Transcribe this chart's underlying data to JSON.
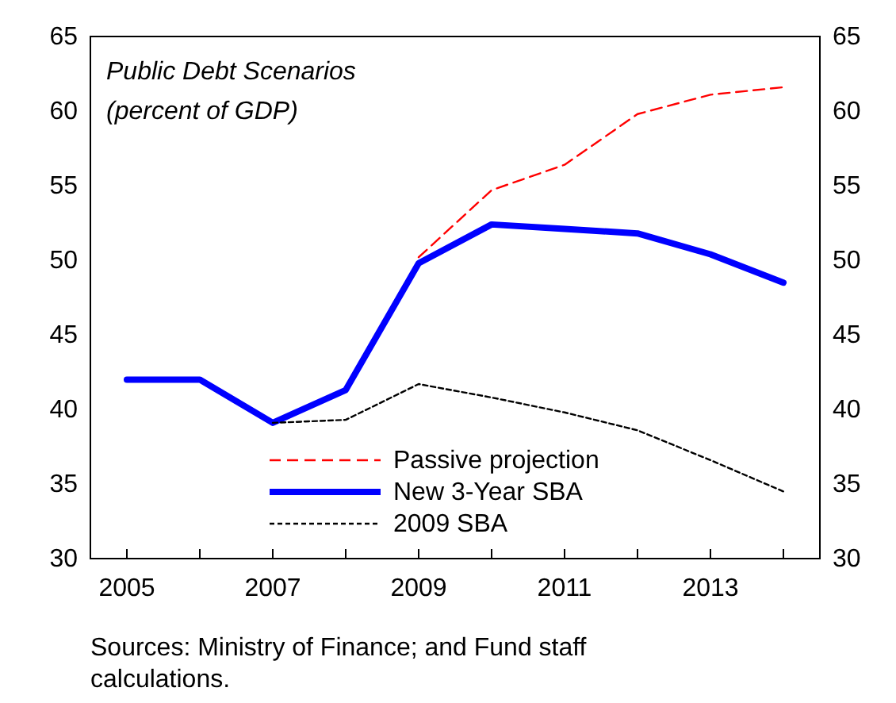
{
  "chart_data": {
    "type": "line",
    "title": "Public Debt Scenarios",
    "subtitle": "(percent of GDP)",
    "x": [
      2005,
      2006,
      2007,
      2008,
      2009,
      2010,
      2011,
      2012,
      2013,
      2014
    ],
    "series": [
      {
        "name": "Passive projection",
        "color": "#ff0000",
        "line_style": "dashed",
        "values": [
          null,
          null,
          null,
          null,
          50.2,
          54.7,
          56.4,
          59.8,
          61.1,
          61.6
        ]
      },
      {
        "name": "New 3-Year SBA",
        "color": "#0000ff",
        "line_style": "solid",
        "values": [
          42,
          42,
          39.1,
          41.3,
          49.8,
          52.4,
          52.1,
          51.8,
          50.4,
          48.5
        ]
      },
      {
        "name": "2009 SBA",
        "color": "#000000",
        "line_style": "dotted",
        "values": [
          null,
          null,
          39.1,
          39.3,
          41.7,
          40.8,
          39.8,
          38.6,
          36.6,
          34.5
        ]
      }
    ],
    "xlim": [
      2004.5,
      2014.5
    ],
    "xticks": [
      2005,
      {
        "value": 2006,
        "label": null
      },
      2007,
      {
        "value": 2008,
        "label": null
      },
      2009,
      {
        "value": 2010,
        "label": null
      },
      2011,
      {
        "value": 2012,
        "label": null
      },
      2013,
      {
        "value": 2014,
        "label": null
      }
    ],
    "ylim": [
      30,
      65
    ],
    "yticks": [
      30,
      35,
      40,
      45,
      50,
      55,
      60,
      65
    ],
    "y2lim": [
      30,
      65
    ],
    "y2ticks": [
      30,
      35,
      40,
      45,
      50,
      55,
      60,
      65
    ],
    "legend": "bottom",
    "grid": false,
    "annotations": [
      "Sources: Ministry of Finance; and Fund staff calculations."
    ]
  }
}
